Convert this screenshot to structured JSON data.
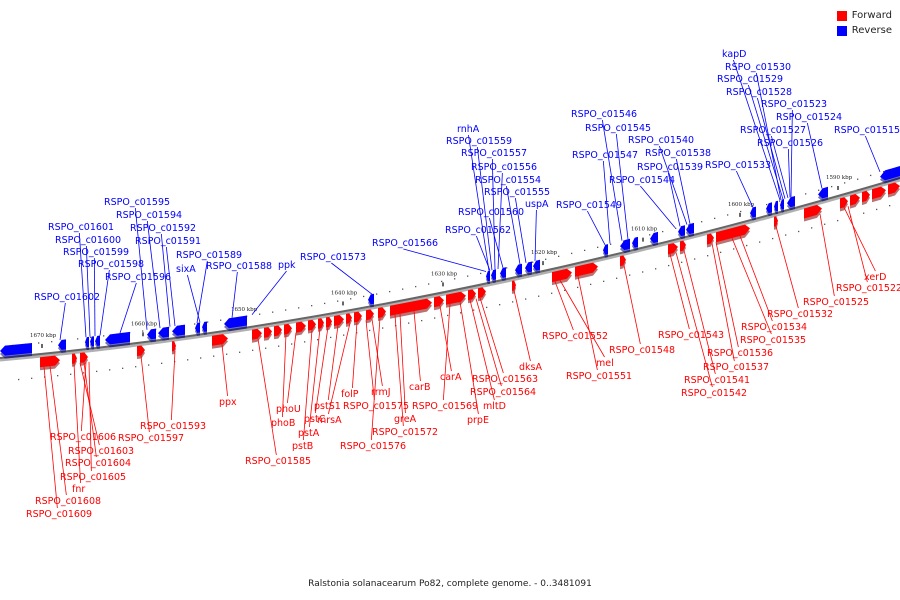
{
  "legend": {
    "forward_label": "Forward",
    "forward_color": "#ff0000",
    "reverse_label": "Reverse",
    "reverse_color": "#0000ff"
  },
  "caption": "Ralstonia solanacearum Po82, complete genome. - 0..3481091",
  "ticks": [
    "1590 kbp",
    "1600 kbp",
    "1610 kbp",
    "1620 kbp",
    "1630 kbp",
    "1640 kbp",
    "1650 kbp",
    "1660 kbp",
    "1670 kbp"
  ],
  "reverse_labels": [
    "kapD",
    "RSPO_c01530",
    "RSPO_c01529",
    "RSPO_c01528",
    "RSPO_c01523",
    "RSPO_c01524",
    "RSPO_c01527",
    "RSPO_c01526",
    "RSPO_c01515",
    "RSPO_c01533",
    "RSPO_c01546",
    "RSPO_c01545",
    "RSPO_c01540",
    "RSPO_c01547",
    "RSPO_c01538",
    "RSPO_c01539",
    "RSPO_c01544",
    "RSPO_c01549",
    "rnhA",
    "RSPO_c01559",
    "RSPO_c01557",
    "RSPO_c01556",
    "RSPO_c01554",
    "RSPO_c01555",
    "uspA",
    "RSPO_c01560",
    "RSPO_c01562",
    "RSPO_c01566",
    "RSPO_c01595",
    "RSPO_c01594",
    "RSPO_c01592",
    "RSPO_c01591",
    "RSPO_c01589",
    "sixA",
    "RSPO_c01588",
    "ppk",
    "RSPO_c01573",
    "RSPO_c01601",
    "RSPO_c01600",
    "RSPO_c01599",
    "RSPO_c01598",
    "RSPO_c01596",
    "RSPO_c01602"
  ],
  "forward_labels": [
    "xerD",
    "RSPO_c01522",
    "RSPO_c01525",
    "RSPO_c01532",
    "RSPO_c01534",
    "RSPO_c01535",
    "RSPO_c01536",
    "RSPO_c01537",
    "RSPO_c01541",
    "RSPO_c01542",
    "RSPO_c01543",
    "RSPO_c01548",
    "RSPO_c01552",
    "mel",
    "RSPO_c01551",
    "dksA",
    "RSPO_c01563",
    "RSPO_c01564",
    "mltD",
    "prpE",
    "carA",
    "carB",
    "RSPO_c01569",
    "greA",
    "RSPO_c01572",
    "RSPO_c01576",
    "rrmJ",
    "RSPO_c01575",
    "folP",
    "mrsA",
    "pstS1",
    "pstC",
    "pstA",
    "pstB",
    "phoU",
    "phoB",
    "RSPO_c01585",
    "ppx",
    "RSPO_c01593",
    "RSPO_c01597",
    "RSPO_c01606",
    "RSPO_c01603",
    "RSPO_c01604",
    "RSPO_c01605",
    "fnr",
    "RSPO_c01608",
    "RSPO_c01609"
  ]
}
